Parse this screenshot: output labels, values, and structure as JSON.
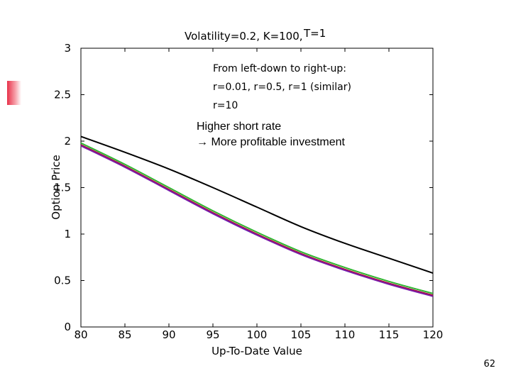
{
  "slide": {
    "page_number": "62"
  },
  "chart_data": {
    "type": "line",
    "title_main": "Volatility=0.2, K=100,",
    "title_suffix": "T=1",
    "xlabel": "Up-To-Date Value",
    "ylabel": "Option Price",
    "xlim": [
      80,
      120
    ],
    "ylim": [
      0,
      3
    ],
    "xticks": [
      80,
      85,
      90,
      95,
      100,
      105,
      110,
      115,
      120
    ],
    "yticks": [
      0,
      0.5,
      1,
      1.5,
      2,
      2.5,
      3
    ],
    "x": [
      80,
      85,
      90,
      95,
      100,
      105,
      110,
      115,
      120
    ],
    "series": [
      {
        "color": "#1f3ad6",
        "values": [
          1.96,
          1.73,
          1.47,
          1.22,
          0.99,
          0.79,
          0.61,
          0.47,
          0.34
        ]
      },
      {
        "color": "#b01030",
        "values": [
          1.96,
          1.73,
          1.48,
          1.23,
          1.0,
          0.79,
          0.62,
          0.47,
          0.34
        ]
      },
      {
        "color": "#7a1aa8",
        "values": [
          1.95,
          1.72,
          1.47,
          1.22,
          0.99,
          0.78,
          0.61,
          0.46,
          0.33
        ]
      },
      {
        "color": "#2fb52f",
        "values": [
          1.98,
          1.75,
          1.5,
          1.25,
          1.02,
          0.81,
          0.64,
          0.49,
          0.36
        ]
      },
      {
        "color": "#000000",
        "values": [
          2.05,
          1.88,
          1.7,
          1.5,
          1.29,
          1.08,
          0.9,
          0.74,
          0.58
        ]
      }
    ],
    "annotations": {
      "from_left": "From left-down to right-up:",
      "similar": "r=0.01, r=0.5, r=1 (similar)",
      "r10": "r=10",
      "higher": "Higher short rate",
      "profitable": "→ More profitable investment"
    },
    "grid": false
  }
}
